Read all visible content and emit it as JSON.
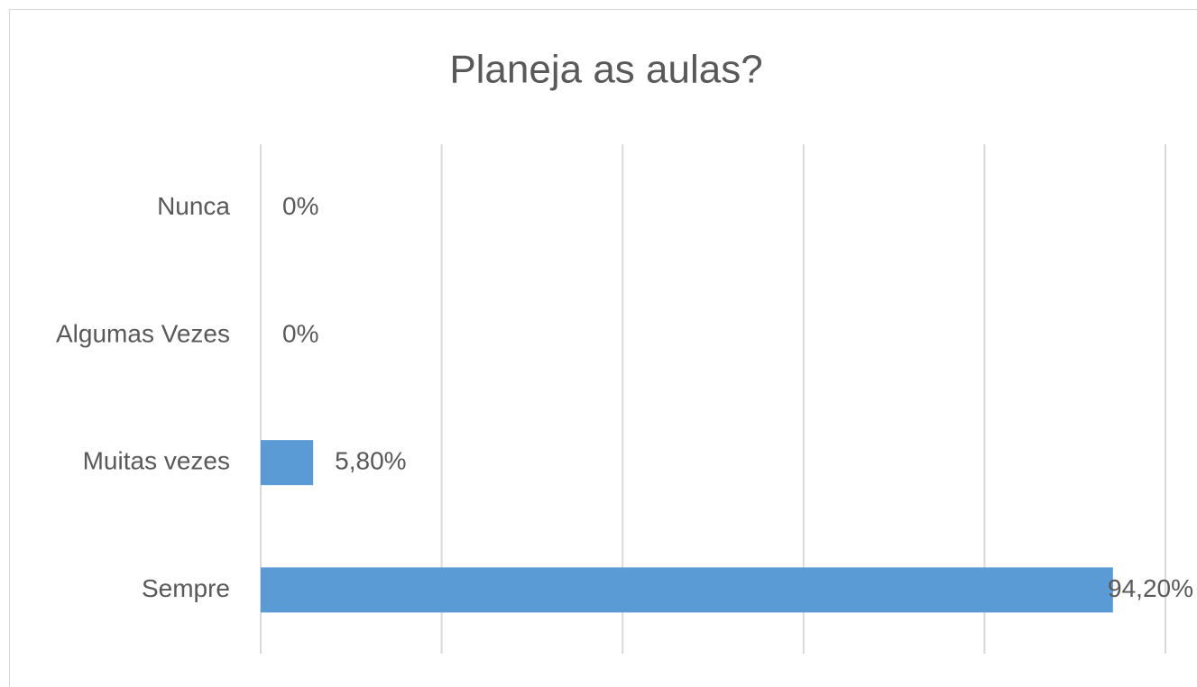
{
  "chart_data": {
    "type": "bar",
    "orientation": "horizontal",
    "title": "Planeja as aulas?",
    "categories": [
      "Nunca",
      "Algumas Vezes",
      "Muitas vezes",
      "Sempre"
    ],
    "values": [
      0,
      0,
      5.8,
      94.2
    ],
    "value_labels": [
      "0%",
      "0%",
      "5,80%",
      "94,20%"
    ],
    "color": "#5b9bd5",
    "xlim": [
      0,
      100
    ],
    "xticks": [
      0,
      20,
      40,
      60,
      80,
      100
    ],
    "grid": true
  }
}
